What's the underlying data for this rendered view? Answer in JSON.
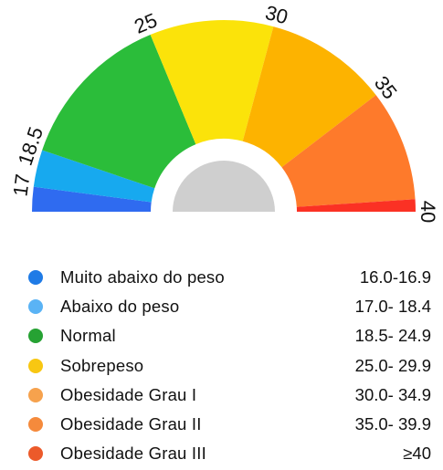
{
  "gauge": {
    "ticks": [
      "17",
      "18.5",
      "25",
      "30",
      "35",
      "40"
    ],
    "segments": [
      {
        "from": 16,
        "to": 17,
        "color": "#2f6bf0"
      },
      {
        "from": 17,
        "to": 18.5,
        "color": "#17a9ef"
      },
      {
        "from": 18.5,
        "to": 25,
        "color": "#2bbd3a"
      },
      {
        "from": 25,
        "to": 30,
        "color": "#fbe30a"
      },
      {
        "from": 30,
        "to": 35,
        "color": "#fdb300"
      },
      {
        "from": 35,
        "to": 39.5,
        "color": "#fe7a2b"
      },
      {
        "from": 39.5,
        "to": 40,
        "color": "#fb3124"
      }
    ],
    "range": [
      16,
      40
    ],
    "center_color": "#cfcfcf"
  },
  "legend": [
    {
      "label": "Muito abaixo do peso",
      "range": "16.0-16.9",
      "color": "#1f7be6"
    },
    {
      "label": "Abaixo do peso",
      "range": "17.0- 18.4",
      "color": "#5ab3f5"
    },
    {
      "label": "Normal",
      "range": "18.5- 24.9",
      "color": "#26a233"
    },
    {
      "label": "Sobrepeso",
      "range": "25.0- 29.9",
      "color": "#f8c712"
    },
    {
      "label": "Obesidade Grau I",
      "range": "30.0- 34.9",
      "color": "#f6a24d"
    },
    {
      "label": "Obesidade Grau II",
      "range": "35.0- 39.9",
      "color": "#f58a3c"
    },
    {
      "label": "Obesidade Grau III",
      "range": "≥40",
      "color": "#ec5a2a"
    }
  ]
}
